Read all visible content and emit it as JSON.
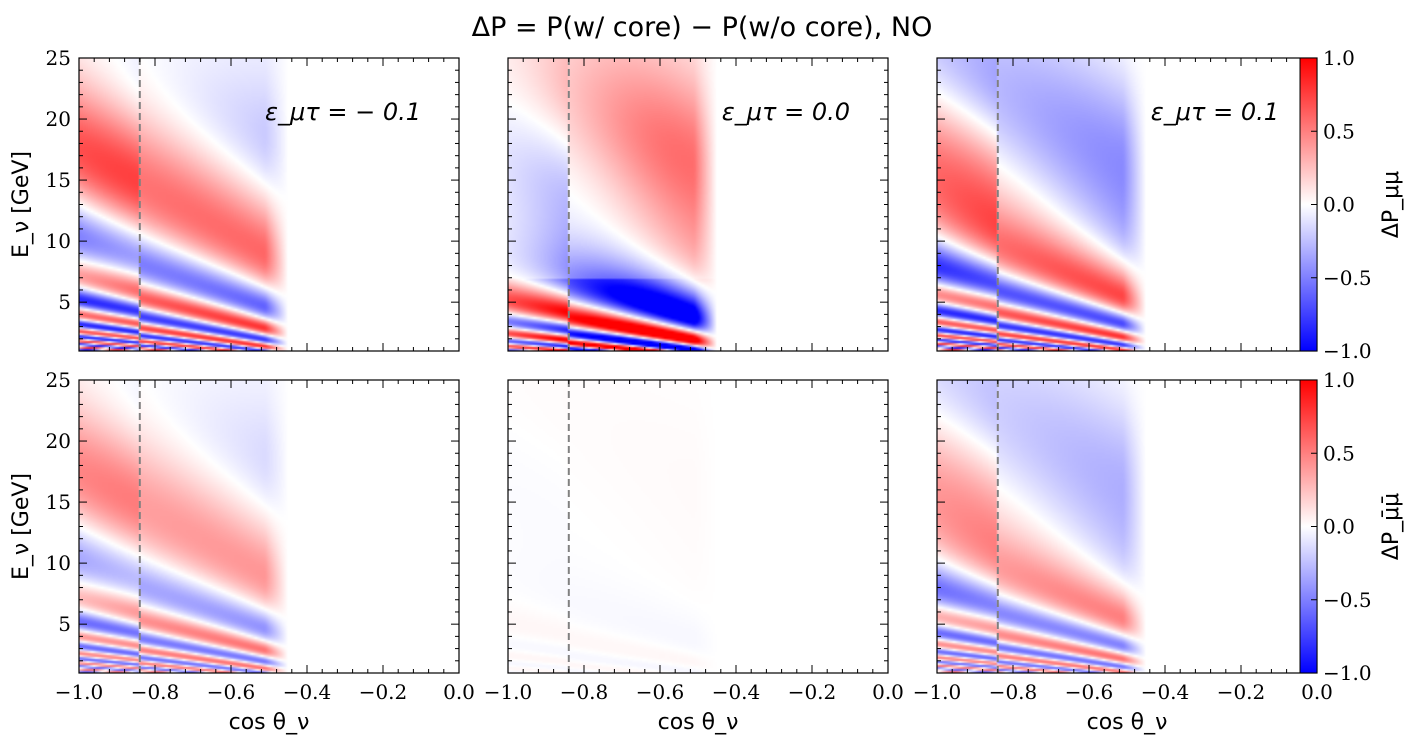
{
  "chart_data": {
    "type": "heatmap",
    "title": "ΔP = P(w/ core) − P(w/o core), NO",
    "xlabel": "cos θ_ν",
    "ylabel": "E_ν [GeV]",
    "xlim": [
      -1.0,
      0.0
    ],
    "ylim": [
      1,
      25
    ],
    "x_ticks": [
      "−1.0",
      "−0.8",
      "−0.6",
      "−0.4",
      "−0.2",
      "0.0"
    ],
    "y_ticks": [
      "5",
      "10",
      "15",
      "20",
      "25"
    ],
    "colorbar_ticks": [
      "−1.0",
      "−0.5",
      "0.0",
      "0.5",
      "1.0"
    ],
    "colorbar_range": [
      -1.0,
      1.0
    ],
    "colormap": [
      "#0000ff",
      "#ffffff",
      "#ff0000"
    ],
    "core_boundary_cos": -0.84,
    "data_extent_cos": -0.45,
    "panels": [
      {
        "row": 0,
        "col": 0,
        "annotation": "ε_μτ = − 0.1",
        "amplitude": 0.8,
        "eps": -0.1
      },
      {
        "row": 0,
        "col": 1,
        "annotation": "ε_μτ = 0.0",
        "amplitude": 0.8,
        "eps": 0.0
      },
      {
        "row": 0,
        "col": 2,
        "annotation": "ε_μτ = 0.1",
        "amplitude": 0.8,
        "eps": 0.1
      },
      {
        "row": 1,
        "col": 0,
        "annotation": "",
        "amplitude": 0.55,
        "eps": -0.1
      },
      {
        "row": 1,
        "col": 1,
        "annotation": "",
        "amplitude": 0.03,
        "eps": 0.0
      },
      {
        "row": 1,
        "col": 2,
        "annotation": "",
        "amplitude": 0.55,
        "eps": 0.1
      }
    ],
    "colorbar_labels": [
      "ΔP_μμ",
      "ΔP_μ̄μ̄"
    ]
  }
}
